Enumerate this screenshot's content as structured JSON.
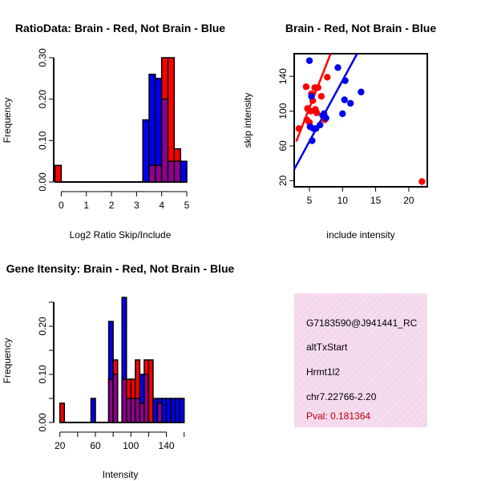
{
  "colors": {
    "red": "#ff0000",
    "blue": "#0000ee",
    "purple": "#990099",
    "info_bg": "#f6dcef",
    "pval": "#bb0000"
  },
  "chart_data": [
    {
      "id": "ratio",
      "type": "histogram",
      "title": "RatioData: Brain - Red, Not Brain - Blue",
      "xlabel": "Log2 Ratio Skip/Include",
      "ylabel": "Frequency",
      "xlim": [
        -0.3,
        5.0
      ],
      "ylim": [
        0,
        0.3
      ],
      "xticks": [
        0,
        1,
        2,
        3,
        4,
        5
      ],
      "yticks": [
        0.0,
        0.1,
        0.2,
        0.3
      ],
      "ytick_labels": [
        "0.00",
        "0.10",
        "0.20",
        "0.30"
      ],
      "bin_start": -0.25,
      "bin_width": 0.25,
      "series": [
        {
          "name": "Not Brain",
          "color": "blue",
          "values": [
            0,
            0,
            0,
            0,
            0,
            0,
            0,
            0,
            0,
            0,
            0,
            0,
            0,
            0,
            0.15,
            0.26,
            0.25,
            0.2,
            0.05,
            0.05,
            0.05
          ]
        },
        {
          "name": "Brain",
          "color": "red",
          "values": [
            0.04,
            0,
            0,
            0,
            0,
            0,
            0,
            0,
            0,
            0,
            0,
            0,
            0,
            0,
            0,
            0.04,
            0.04,
            0.3,
            0.3,
            0.08,
            0
          ]
        }
      ]
    },
    {
      "id": "scatter",
      "type": "scatter",
      "title": "Brain - Red, Not Brain - Blue",
      "xlabel": "include intensity",
      "ylabel": "skip intensity",
      "xlim": [
        2.7,
        22.8
      ],
      "ylim": [
        13,
        166
      ],
      "xticks": [
        5,
        10,
        15,
        20
      ],
      "yticks": [
        20,
        60,
        100,
        140
      ],
      "series": [
        {
          "name": "Brain",
          "color": "red",
          "points": [
            [
              4.5,
              128
            ],
            [
              5.3,
              120
            ],
            [
              5.8,
              127
            ],
            [
              6.3,
              127
            ],
            [
              5.5,
              112
            ],
            [
              4.7,
              103
            ],
            [
              5.9,
              102
            ],
            [
              5.2,
              100
            ],
            [
              6.1,
              98
            ],
            [
              4.6,
              90
            ],
            [
              5.0,
              87
            ],
            [
              7.3,
              90
            ],
            [
              6.8,
              117
            ],
            [
              7.7,
              139
            ],
            [
              3.4,
              80
            ],
            [
              22.0,
              19
            ]
          ],
          "fit": [
            [
              3.0,
              65
            ],
            [
              8.2,
              166
            ]
          ]
        },
        {
          "name": "Not Brain",
          "color": "blue",
          "points": [
            [
              5.0,
              158
            ],
            [
              9.3,
              150
            ],
            [
              10.4,
              135
            ],
            [
              12.8,
              122
            ],
            [
              10.3,
              113
            ],
            [
              11.2,
              109
            ],
            [
              10.0,
              97
            ],
            [
              5.3,
              117
            ],
            [
              7.0,
              95
            ],
            [
              7.2,
              97
            ],
            [
              7.5,
              92
            ],
            [
              5.1,
              82
            ],
            [
              5.6,
              80
            ],
            [
              6.0,
              80
            ],
            [
              6.6,
              84
            ],
            [
              5.4,
              66
            ]
          ],
          "fit": [
            [
              2.7,
              33
            ],
            [
              12.2,
              166
            ]
          ]
        }
      ]
    },
    {
      "id": "intensity",
      "type": "histogram",
      "title": "Gene Itensity: Brain - Red, Not Brain - Blue",
      "xlabel": "Intensity",
      "ylabel": "Frequency",
      "xlim": [
        13,
        163
      ],
      "ylim": [
        0,
        0.27
      ],
      "xticks": [
        20,
        60,
        100,
        140
      ],
      "yticks": [
        0.0,
        0.1,
        0.2
      ],
      "ytick_labels": [
        "0.00",
        "0.10",
        "0.20"
      ],
      "bin_start": 20,
      "bin_width": 5,
      "series": [
        {
          "name": "Not Brain",
          "color": "blue",
          "values": [
            0,
            0,
            0,
            0,
            0,
            0,
            0,
            0.05,
            0,
            0,
            0,
            0.21,
            0.1,
            0,
            0.26,
            0.05,
            0.05,
            0.05,
            0.1,
            0.1,
            0,
            0.05,
            0.05,
            0.05,
            0.05,
            0.05,
            0.05,
            0.05
          ]
        },
        {
          "name": "Brain",
          "color": "red",
          "values": [
            0.04,
            0,
            0,
            0,
            0,
            0,
            0,
            0,
            0,
            0,
            0,
            0.09,
            0.13,
            0,
            0.09,
            0.09,
            0.09,
            0.13,
            0.04,
            0.13,
            0.13,
            0,
            0.04,
            0,
            0,
            0,
            0,
            0
          ]
        }
      ]
    }
  ],
  "info_panel": {
    "id_line": "G7183590@J941441_RC",
    "event_type": "altTxStart",
    "gene": "Hrmt1l2",
    "location": "chr7.22766-2.20",
    "pval": "Pval: 0.181364"
  }
}
